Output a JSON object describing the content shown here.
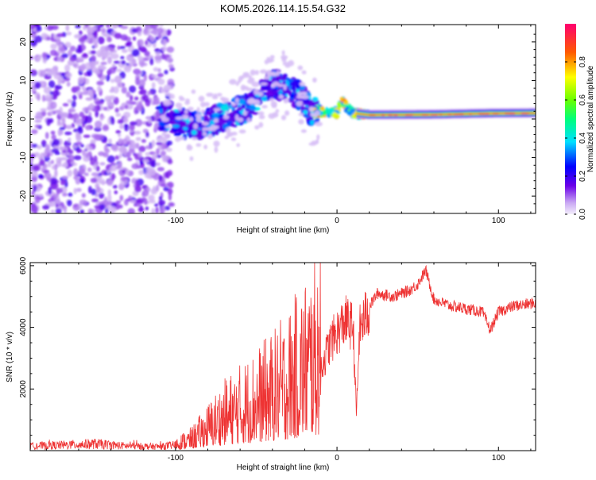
{
  "title": "KOM5.2026.114.15.54.G32",
  "chart_data": [
    {
      "type": "heatmap",
      "name": "spectrogram",
      "xlabel": "Height of straight line (km)",
      "ylabel": "Frequency (Hz)",
      "xlim": [
        -190,
        123
      ],
      "ylim": [
        -24.5,
        24.5
      ],
      "xticks": [
        -100,
        0,
        100
      ],
      "yticks": [
        -20,
        -10,
        0,
        10,
        20
      ],
      "colorbar": {
        "label": "Normalized spectral amplitude",
        "range": [
          0,
          1
        ],
        "ticks": [
          0.0,
          0.2,
          0.4,
          0.6,
          0.8
        ]
      },
      "description_regions": [
        {
          "x_range": [
            -190,
            -102
          ],
          "f_range": [
            -24.5,
            24.5
          ],
          "amplitude": [
            0.05,
            0.2
          ]
        },
        {
          "x_range": [
            -110,
            -10
          ],
          "f_range": [
            -8,
            12
          ],
          "amplitude": [
            0.15,
            0.4
          ]
        },
        {
          "x_range": [
            -15,
            20
          ],
          "f_range": [
            -1,
            5
          ],
          "amplitude": [
            0.3,
            0.9
          ]
        },
        {
          "x_range": [
            20,
            123
          ],
          "f_range": [
            0.5,
            2.2
          ],
          "amplitude": [
            0.6,
            0.95
          ]
        }
      ],
      "ridge": [
        {
          "x": -110,
          "f": 1.0
        },
        {
          "x": -90,
          "f": -2.0
        },
        {
          "x": -70,
          "f": 0.5
        },
        {
          "x": -55,
          "f": 3.0
        },
        {
          "x": -40,
          "f": 9.5
        },
        {
          "x": -25,
          "f": 7.0
        },
        {
          "x": -15,
          "f": 2.0
        },
        {
          "x": 0,
          "f": 1.5
        },
        {
          "x": 3,
          "f": 4.5
        },
        {
          "x": 10,
          "f": 1.5
        },
        {
          "x": 20,
          "f": 1.0
        },
        {
          "x": 60,
          "f": 1.1
        },
        {
          "x": 95,
          "f": 1.4
        },
        {
          "x": 123,
          "f": 1.5
        }
      ]
    },
    {
      "type": "line",
      "name": "snr",
      "xlabel": "Height of straight line (km)",
      "ylabel": "SNR (10 * v/v)",
      "xlim": [
        -190,
        123
      ],
      "ylim": [
        0,
        6100
      ],
      "xticks": [
        -100,
        0,
        100
      ],
      "yticks": [
        2000,
        4000,
        6000
      ],
      "color": "#ee3333",
      "series": [
        {
          "name": "SNR",
          "x": [
            -190,
            -170,
            -150,
            -130,
            -110,
            -100,
            -90,
            -80,
            -70,
            -60,
            -50,
            -40,
            -30,
            -20,
            -12,
            -8,
            -4,
            0,
            5,
            10,
            12,
            14,
            18,
            25,
            35,
            45,
            50,
            55,
            60,
            70,
            80,
            90,
            95,
            100,
            110,
            118,
            123
          ],
          "y": [
            150,
            180,
            220,
            150,
            130,
            180,
            300,
            600,
            900,
            1100,
            1300,
            1500,
            1800,
            2200,
            2500,
            3000,
            3600,
            3900,
            4300,
            4100,
            1200,
            4000,
            4500,
            5100,
            5000,
            5200,
            5400,
            5850,
            4900,
            4700,
            4600,
            4500,
            3900,
            4500,
            4700,
            4750,
            4800
          ]
        }
      ]
    }
  ],
  "colors": {
    "snr_line": "#ee3333",
    "axis": "#000000"
  }
}
